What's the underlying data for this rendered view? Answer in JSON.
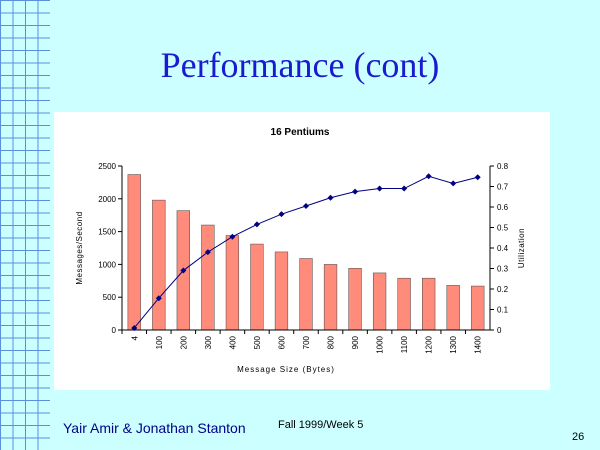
{
  "slide": {
    "title": "Performance (cont)",
    "authors": "Yair Amir & Jonathan Stanton",
    "date": "Fall 1999/Week 5",
    "page": "26"
  },
  "colors": {
    "background": "#ccffff",
    "title": "#1a1ad0",
    "bar": "#ff8c7a",
    "line": "#000080"
  },
  "chart_data": {
    "type": "bar",
    "title": "16 Pentiums",
    "xlabel": "Message Size (Bytes)",
    "ylabel": "Messages/Second",
    "y2label": "Utilization",
    "categories": [
      "4",
      "100",
      "200",
      "300",
      "400",
      "500",
      "600",
      "700",
      "800",
      "900",
      "1000",
      "1100",
      "1200",
      "1300",
      "1400"
    ],
    "ylim": [
      0,
      2500
    ],
    "y_ticks": [
      "0",
      "500",
      "1000",
      "1500",
      "2000",
      "2500"
    ],
    "y2lim": [
      0,
      0.8
    ],
    "y2_ticks": [
      "0",
      "0.1",
      "0.2",
      "0.3",
      "0.4",
      "0.5",
      "0.6",
      "0.7",
      "0.8"
    ],
    "grid": false,
    "series": [
      {
        "type": "bar",
        "axis": "left",
        "values": [
          2370,
          1980,
          1820,
          1600,
          1440,
          1310,
          1190,
          1090,
          1000,
          940,
          870,
          790,
          790,
          680,
          670
        ]
      },
      {
        "type": "line",
        "axis": "right",
        "values": [
          0.01,
          0.155,
          0.29,
          0.38,
          0.455,
          0.515,
          0.565,
          0.605,
          0.645,
          0.675,
          0.69,
          0.69,
          0.75,
          0.715,
          0.745
        ]
      }
    ]
  }
}
